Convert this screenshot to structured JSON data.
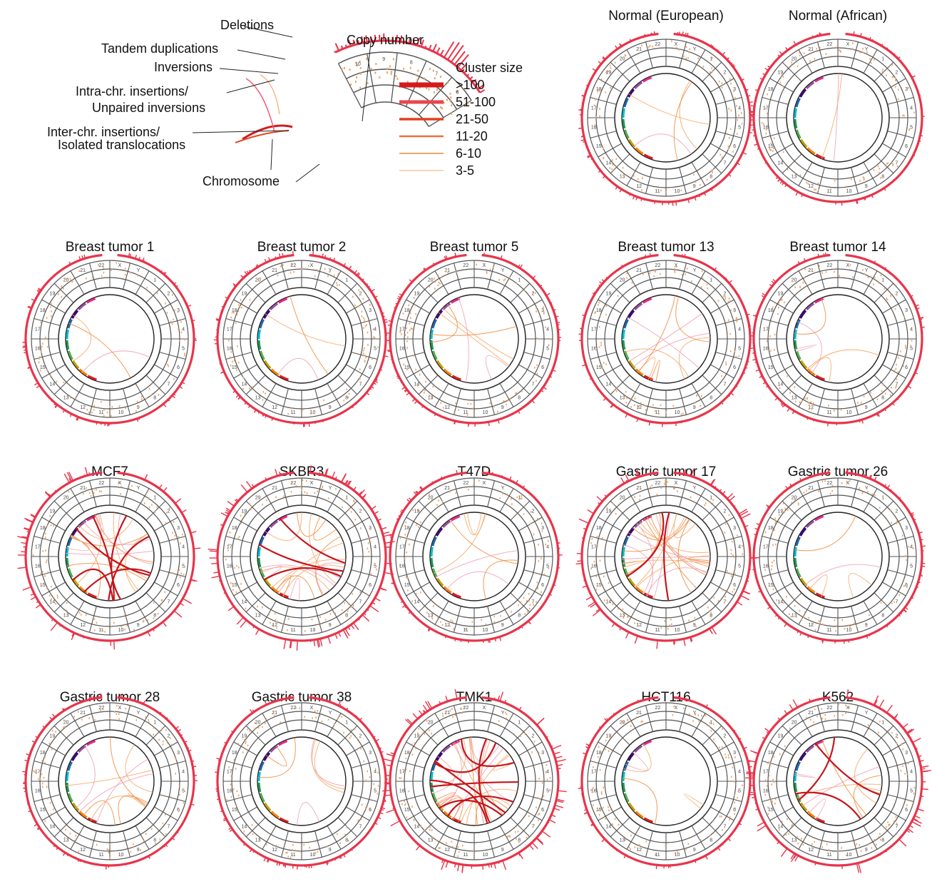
{
  "legend": {
    "annotations": [
      {
        "key": "deletions",
        "text": "Deletions"
      },
      {
        "key": "tandem",
        "text": "Tandem duplications"
      },
      {
        "key": "inversions",
        "text": "Inversions"
      },
      {
        "key": "intra1",
        "text": "Intra-chr. insertions/"
      },
      {
        "key": "intra2",
        "text": "Unpaired inversions"
      },
      {
        "key": "inter1",
        "text": "Inter-chr. insertions/"
      },
      {
        "key": "inter2",
        "text": "Isolated translocations"
      },
      {
        "key": "chromosome",
        "text": "Chromosome"
      },
      {
        "key": "copynumber",
        "text": "Copy number"
      }
    ],
    "zoom_chromosomes": [
      "10",
      "9",
      "8",
      "7",
      "6"
    ],
    "cluster_title": "Cluster size",
    "cluster_sizes": [
      {
        "label": ">100",
        "color": "#d7191c",
        "width": 7
      },
      {
        "label": "51-100",
        "color": "#e8464f",
        "width": 5
      },
      {
        "label": "21-50",
        "color": "#e2421b",
        "width": 3.5
      },
      {
        "label": "11-20",
        "color": "#ee7038",
        "width": 2.5
      },
      {
        "label": "6-10",
        "color": "#f08a3c",
        "width": 1.6
      },
      {
        "label": "3-5",
        "color": "#f5a867",
        "width": 1
      }
    ]
  },
  "colors": {
    "copy_number": "#e8344a",
    "ring": "#555555",
    "deletion": "#e8a56a"
  },
  "ring_labels": [
    "X",
    "Y",
    "1",
    "2",
    "3",
    "4",
    "5",
    "6",
    "7",
    "8",
    "9",
    "10",
    "11",
    "12",
    "13",
    "14",
    "15",
    "16",
    "17",
    "18",
    "19",
    "20",
    "21",
    "22"
  ],
  "panels": [
    {
      "key": "normal_eu",
      "title": "Normal (European)",
      "links": 4,
      "strong": 0
    },
    {
      "key": "normal_af",
      "title": "Normal (African)",
      "links": 2,
      "strong": 0
    },
    {
      "key": "bt1",
      "title": "Breast tumor 1",
      "links": 3,
      "strong": 0
    },
    {
      "key": "bt2",
      "title": "Breast tumor 2",
      "links": 3,
      "strong": 0
    },
    {
      "key": "bt5",
      "title": "Breast tumor 5",
      "links": 6,
      "strong": 0
    },
    {
      "key": "bt13",
      "title": "Breast tumor 13",
      "links": 9,
      "strong": 0
    },
    {
      "key": "bt14",
      "title": "Breast tumor 14",
      "links": 5,
      "strong": 0
    },
    {
      "key": "mcf7",
      "title": "MCF7",
      "links": 14,
      "strong": 6
    },
    {
      "key": "skbr3",
      "title": "SKBR3",
      "links": 16,
      "strong": 3
    },
    {
      "key": "t47d",
      "title": "T47D",
      "links": 7,
      "strong": 0
    },
    {
      "key": "gt17",
      "title": "Gastric tumor 17",
      "links": 22,
      "strong": 2
    },
    {
      "key": "gt26",
      "title": "Gastric tumor 26",
      "links": 4,
      "strong": 0
    },
    {
      "key": "gt28",
      "title": "Gastric tumor 28",
      "links": 10,
      "strong": 0
    },
    {
      "key": "gt38",
      "title": "Gastric tumor 38",
      "links": 6,
      "strong": 0
    },
    {
      "key": "tmk1",
      "title": "TMK1",
      "links": 20,
      "strong": 8
    },
    {
      "key": "hct116",
      "title": "HCT116",
      "links": 4,
      "strong": 0
    },
    {
      "key": "k562",
      "title": "K562",
      "links": 8,
      "strong": 3
    }
  ]
}
